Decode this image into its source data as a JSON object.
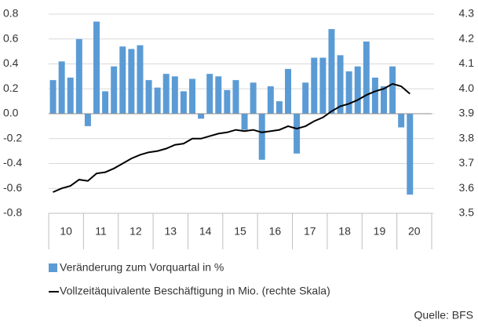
{
  "chart_data": {
    "type": "bar_line",
    "groups": [
      "10",
      "11",
      "12",
      "13",
      "14",
      "15",
      "16",
      "17",
      "18",
      "19",
      "20"
    ],
    "series": [
      {
        "name": "Veränderung zum Vorquartal in %",
        "type": "bar",
        "color": "#5b9bd5",
        "values": [
          0.27,
          0.42,
          0.29,
          0.6,
          -0.1,
          0.74,
          0.18,
          0.38,
          0.54,
          0.52,
          0.55,
          0.27,
          0.21,
          0.32,
          0.3,
          0.18,
          0.28,
          -0.04,
          0.32,
          0.3,
          0.19,
          0.27,
          -0.13,
          0.25,
          -0.37,
          0.22,
          0.1,
          0.36,
          -0.32,
          0.25,
          0.45,
          0.45,
          0.68,
          0.47,
          0.34,
          0.38,
          0.58,
          0.29,
          0.22,
          0.38,
          -0.11,
          -0.65,
          null,
          null
        ]
      },
      {
        "name": "Vollzeitäquivalente Beschäftigung in Mio. (rechte Skala)",
        "type": "line",
        "axis": "y2",
        "color": "#000000",
        "values": [
          3.585,
          3.6,
          3.61,
          3.635,
          3.63,
          3.66,
          3.665,
          3.68,
          3.7,
          3.72,
          3.735,
          3.745,
          3.75,
          3.76,
          3.775,
          3.78,
          3.8,
          3.8,
          3.81,
          3.82,
          3.825,
          3.835,
          3.83,
          3.835,
          3.825,
          3.83,
          3.835,
          3.85,
          3.84,
          3.85,
          3.87,
          3.885,
          3.91,
          3.93,
          3.94,
          3.955,
          3.975,
          3.99,
          4.0,
          4.02,
          4.01,
          3.98,
          null,
          null
        ]
      }
    ],
    "ylim": [
      -0.8,
      0.8
    ],
    "yticks": [
      -0.8,
      -0.6,
      -0.4,
      -0.2,
      {
        "value": 0,
        "label": "0.0"
      },
      0.2,
      0.4,
      0.6,
      0.8
    ],
    "y2lim": [
      3.5,
      4.3
    ],
    "y2ticks": [
      3.5,
      3.6,
      3.7,
      3.8,
      3.9,
      {
        "value": 4.0,
        "label": "4.0"
      },
      4.1,
      4.2,
      4.3
    ],
    "grid": true,
    "source": "Quelle: BFS"
  }
}
